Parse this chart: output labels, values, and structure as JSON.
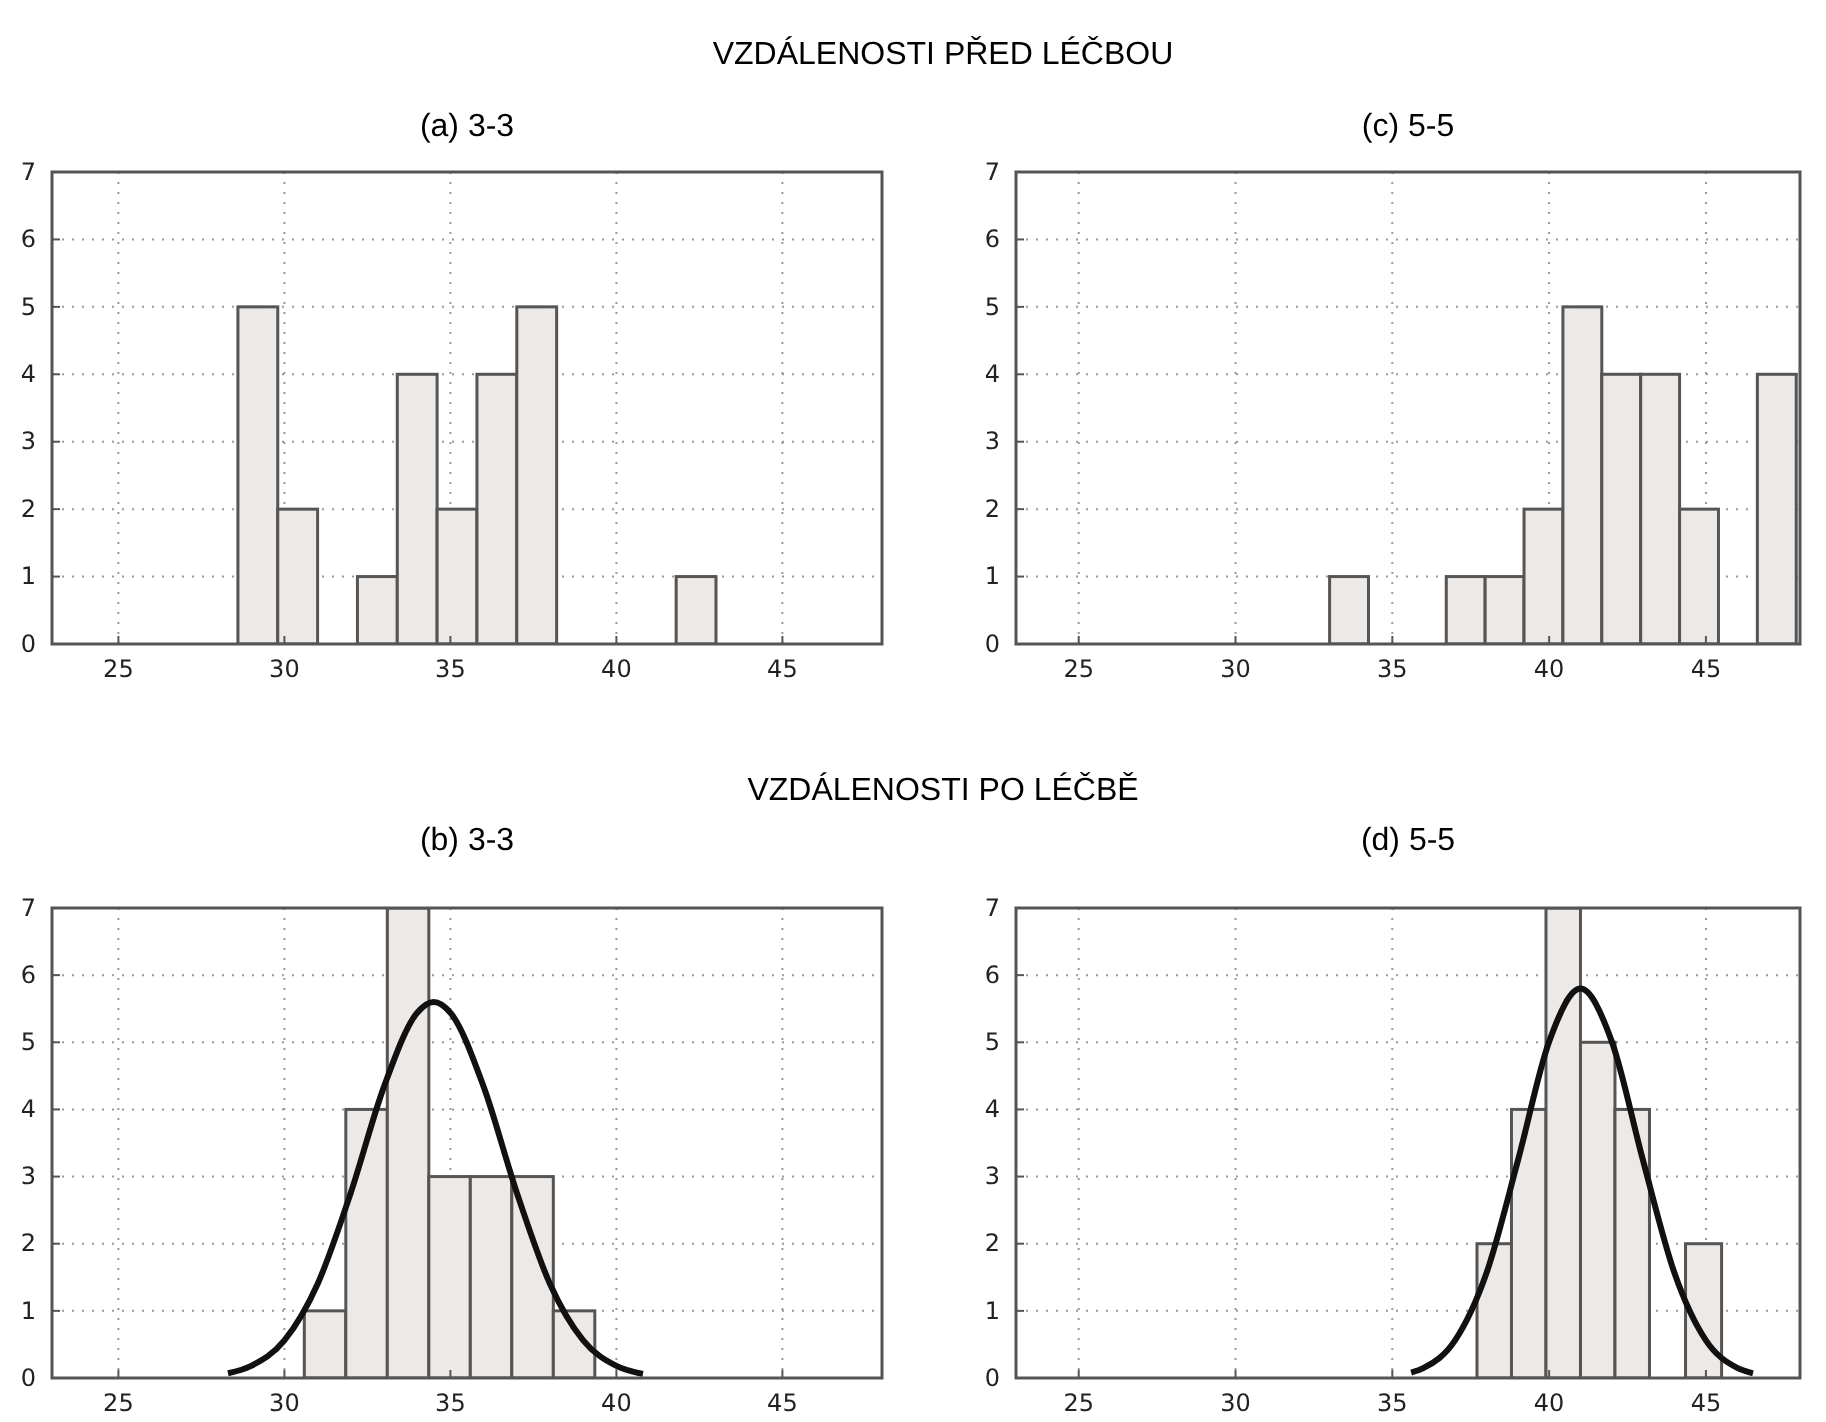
{
  "chart_data": [
    {
      "type": "histogram",
      "title": "(a) 3-3",
      "annotations": [
        "VZDÁLENOSTI PŘED LÉČBOU"
      ],
      "bins": [
        28.6,
        29.8,
        31.0,
        32.2,
        33.4,
        34.6,
        35.8,
        37.0,
        38.2,
        39.4,
        40.6,
        41.8,
        43.0
      ],
      "values": [
        5,
        2,
        0,
        1,
        4,
        2,
        4,
        5,
        0,
        0,
        0,
        1
      ],
      "color": "#ece9e6",
      "xlim": [
        23,
        48
      ],
      "ylim": [
        0,
        7
      ],
      "xticks": [
        25,
        30,
        35,
        40,
        45
      ],
      "yticks": [
        0,
        1,
        2,
        3,
        4,
        5,
        6,
        7
      ],
      "grid": true
    },
    {
      "type": "histogram",
      "title": "(c) 5-5",
      "bins": [
        33.0,
        34.24,
        35.48,
        36.72,
        37.96,
        39.2,
        40.44,
        41.68,
        42.92,
        44.16,
        45.4,
        46.64,
        47.88
      ],
      "values": [
        1,
        0,
        0,
        1,
        1,
        2,
        5,
        4,
        4,
        2,
        0,
        4
      ],
      "color": "#ece9e6",
      "xlim": [
        23,
        48
      ],
      "ylim": [
        0,
        7
      ],
      "xticks": [
        25,
        30,
        35,
        40,
        45
      ],
      "yticks": [
        0,
        1,
        2,
        3,
        4,
        5,
        6,
        7
      ],
      "grid": true
    },
    {
      "type": "histogram",
      "title": "(b) 3-3",
      "annotations": [
        "VZDÁLENOSTI PO LÉČBĚ"
      ],
      "bins": [
        30.6,
        31.85,
        33.1,
        34.35,
        35.6,
        36.85,
        38.1,
        39.35
      ],
      "values": [
        1,
        4,
        7,
        3,
        3,
        3,
        1
      ],
      "color": "#ece9e6",
      "xlim": [
        23,
        48
      ],
      "ylim": [
        0,
        7
      ],
      "xticks": [
        25,
        30,
        35,
        40,
        45
      ],
      "yticks": [
        0,
        1,
        2,
        3,
        4,
        5,
        6,
        7
      ],
      "grid": true,
      "series": [
        {
          "type": "line",
          "color": "#111111",
          "x": [
            28.3,
            29,
            30,
            31,
            32,
            33,
            34,
            34.5,
            35,
            36,
            37,
            38,
            39,
            40,
            40.8
          ],
          "values": [
            0.07,
            0.18,
            0.56,
            1.4,
            2.76,
            4.34,
            5.44,
            5.6,
            5.44,
            4.34,
            2.76,
            1.4,
            0.56,
            0.18,
            0.06
          ]
        }
      ]
    },
    {
      "type": "histogram",
      "title": "(d) 5-5",
      "bins": [
        37.7,
        38.8,
        39.9,
        41.0,
        42.1,
        43.2,
        44.35,
        45.5
      ],
      "values": [
        2,
        4,
        7,
        5,
        4,
        0,
        2
      ],
      "color": "#ece9e6",
      "xlim": [
        23,
        48
      ],
      "ylim": [
        0,
        7
      ],
      "xticks": [
        25,
        30,
        35,
        40,
        45
      ],
      "yticks": [
        0,
        1,
        2,
        3,
        4,
        5,
        6,
        7
      ],
      "grid": true,
      "series": [
        {
          "type": "line",
          "color": "#111111",
          "x": [
            35.6,
            36,
            37,
            38,
            39,
            40,
            41,
            42,
            43,
            44,
            45,
            46,
            46.5
          ],
          "values": [
            0.08,
            0.15,
            0.56,
            1.56,
            3.23,
            5.01,
            5.8,
            5.01,
            3.23,
            1.56,
            0.56,
            0.15,
            0.07
          ]
        }
      ]
    }
  ]
}
